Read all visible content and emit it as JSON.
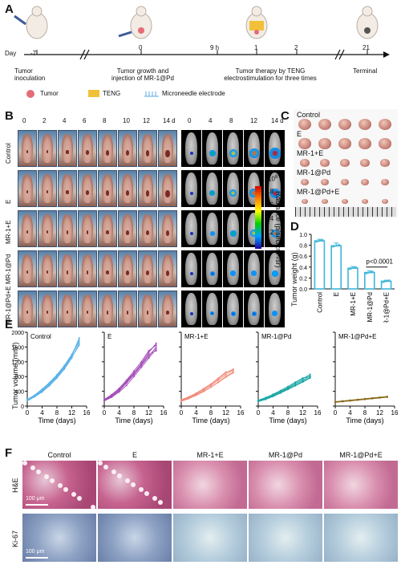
{
  "panels": {
    "A": "A",
    "B": "B",
    "C": "C",
    "D": "D",
    "E": "E",
    "F": "F"
  },
  "panelA": {
    "day_label": "Day",
    "ticks": [
      "-7",
      "0",
      "9 h",
      "1",
      "2",
      "21"
    ],
    "events": {
      "inoculation": "Tumor\ninoculation",
      "growth": "Tumor growth and\ninjection of MR-1@Pd",
      "therapy": "Tumor therapy by TENG\nelectrostimulation  for three times",
      "terminal": "Terminal"
    },
    "legend": [
      {
        "label": "Tumor",
        "color": "#e56b78"
      },
      {
        "label": "TENG",
        "color": "#f2c038"
      },
      {
        "label": "Microneedle electrode",
        "color": "#5aa9e6"
      }
    ]
  },
  "panelB": {
    "photo_days": [
      "0",
      "2",
      "4",
      "6",
      "8",
      "10",
      "12",
      "14 d"
    ],
    "ivis_days": [
      "0",
      "4",
      "8",
      "12",
      "14 d"
    ],
    "groups": [
      "Control",
      "E",
      "MR-1+E",
      "MR-1@Pd",
      "MR-1@Pd+E"
    ],
    "colorbar": {
      "unit_exp": "x10",
      "exponent": "8",
      "ticks": [
        "0.8",
        "0.6",
        "0.4",
        "0.2"
      ],
      "label": "Radiance (p/sec/cm²/sr)"
    }
  },
  "panelC": {
    "groups": [
      "Control",
      "E",
      "MR-1+E",
      "MR-1@Pd",
      "MR-1@Pd+E"
    ]
  },
  "chart_data": [
    {
      "type": "bar",
      "id": "D",
      "categories": [
        "Control",
        "E",
        "MR-1+E",
        "MR-1@Pd",
        "MR-1@Pd+E"
      ],
      "values": [
        0.88,
        0.79,
        0.38,
        0.3,
        0.14
      ],
      "errors": [
        0.03,
        0.05,
        0.03,
        0.03,
        0.02
      ],
      "ylabel": "Tumor weight (g)",
      "ylim": [
        0,
        1.0
      ],
      "yticks": [
        "0.0",
        "0.2",
        "0.4",
        "0.6",
        "0.8",
        "1.0"
      ],
      "annotation": "p<0.0001",
      "color": "#3fb6d8"
    },
    {
      "type": "line",
      "id": "E",
      "ylabel": "Tumor volume (mm³)",
      "xlabel": "Time (days)",
      "xticks": [
        "0",
        "4",
        "8",
        "12",
        "16"
      ],
      "yticks": [
        "0",
        "400",
        "800",
        "1200",
        "1600",
        "2000"
      ],
      "xlim": [
        0,
        16
      ],
      "ylim": [
        0,
        2000
      ],
      "x": [
        0,
        2,
        4,
        6,
        8,
        10,
        12,
        14
      ],
      "groups": [
        {
          "name": "Control",
          "color": "#5ab2e8",
          "curves": [
            [
              160,
              280,
              420,
              600,
              800,
              1050,
              1350,
              1850
            ],
            [
              140,
              250,
              380,
              550,
              760,
              1000,
              1300,
              1700
            ],
            [
              180,
              300,
              460,
              640,
              850,
              1100,
              1400,
              1800
            ],
            [
              150,
              260,
              400,
              580,
              780,
              1020,
              1320,
              1650
            ],
            [
              170,
              290,
              440,
              620,
              820,
              1080,
              1380,
              1750
            ]
          ]
        },
        {
          "name": "E",
          "color": "#a24ab8",
          "curves": [
            [
              150,
              260,
              410,
              620,
              850,
              1100,
              1350,
              1600
            ],
            [
              140,
              240,
              380,
              560,
              800,
              1050,
              1300,
              1550
            ],
            [
              170,
              300,
              460,
              680,
              900,
              1150,
              1450,
              1700
            ],
            [
              160,
              280,
              430,
              650,
              870,
              1120,
              1400,
              1500
            ],
            [
              180,
              310,
              480,
              700,
              950,
              1200,
              1500,
              1650
            ]
          ]
        },
        {
          "name": "MR-1+E",
          "color": "#f08a78",
          "curves": [
            [
              150,
              220,
              320,
              430,
              560,
              700,
              850,
              980
            ],
            [
              140,
              210,
              300,
              400,
              520,
              650,
              800,
              920
            ],
            [
              160,
              240,
              340,
              460,
              590,
              740,
              900,
              1000
            ],
            [
              130,
              200,
              290,
              390,
              510,
              640,
              780,
              900
            ],
            [
              170,
              250,
              350,
              470,
              600,
              760,
              920,
              960
            ]
          ]
        },
        {
          "name": "MR-1@Pd",
          "color": "#1aa6a6",
          "curves": [
            [
              140,
              200,
              290,
              380,
              480,
              590,
              700,
              820
            ],
            [
              130,
              190,
              270,
              360,
              460,
              560,
              670,
              780
            ],
            [
              150,
              220,
              310,
              400,
              500,
              620,
              740,
              860
            ],
            [
              160,
              230,
              320,
              420,
              530,
              650,
              760,
              800
            ],
            [
              120,
              180,
              260,
              350,
              450,
              550,
              650,
              760
            ]
          ]
        },
        {
          "name": "MR-1@Pd+E",
          "color": "#8a6a1a",
          "curves": [
            [
              110,
              130,
              150,
              170,
              190,
              210,
              230,
              250
            ],
            [
              100,
              120,
              140,
              160,
              180,
              200,
              220,
              240
            ],
            [
              120,
              140,
              160,
              180,
              200,
              220,
              240,
              260
            ],
            [
              105,
              125,
              145,
              165,
              185,
              205,
              225,
              245
            ],
            [
              115,
              135,
              155,
              175,
              195,
              215,
              235,
              255
            ]
          ]
        }
      ]
    }
  ],
  "panelF": {
    "groups": [
      "Control",
      "E",
      "MR-1+E",
      "MR-1@Pd",
      "MR-1@Pd+E"
    ],
    "rows": [
      "H&E",
      "Ki-67"
    ],
    "scale": "100 μm"
  }
}
